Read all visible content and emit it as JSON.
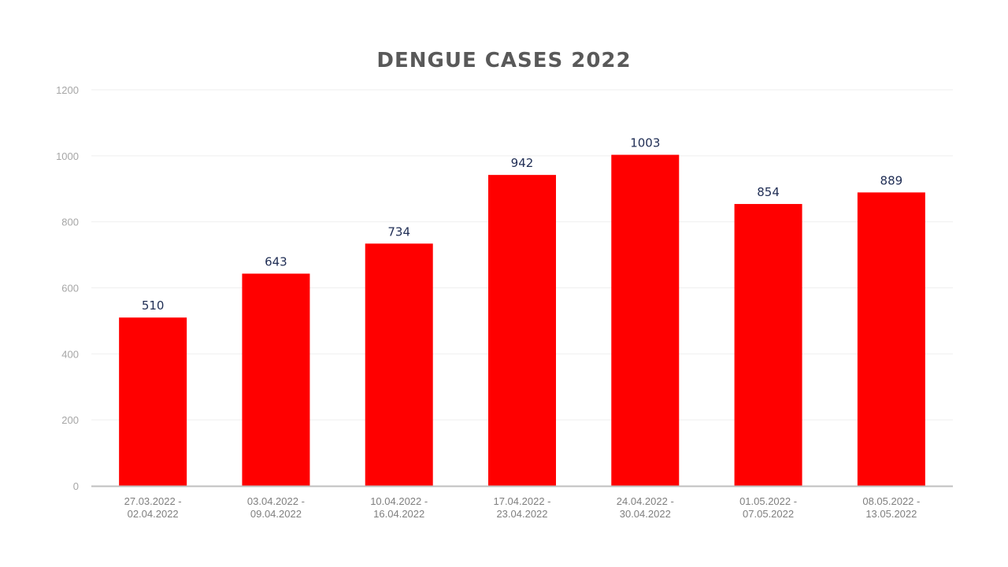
{
  "chart_data": {
    "type": "bar",
    "title": "DENGUE CASES 2022",
    "xlabel": "",
    "ylabel": "",
    "ylim": [
      0,
      1200
    ],
    "yticks": [
      0,
      200,
      400,
      600,
      800,
      1000,
      1200
    ],
    "grid": true,
    "categories": [
      [
        "27.03.2022 -",
        "02.04.2022"
      ],
      [
        "03.04.2022 -",
        "09.04.2022"
      ],
      [
        "10.04.2022 -",
        "16.04.2022"
      ],
      [
        "17.04.2022 -",
        "23.04.2022"
      ],
      [
        "24.04.2022 -",
        "30.04.2022"
      ],
      [
        "01.05.2022 -",
        "07.05.2022"
      ],
      [
        "08.05.2022 -",
        "13.05.2022"
      ]
    ],
    "values": [
      510,
      643,
      734,
      942,
      1003,
      854,
      889
    ],
    "bar_color": "#ff0000",
    "label_color": "#1f2d54"
  }
}
